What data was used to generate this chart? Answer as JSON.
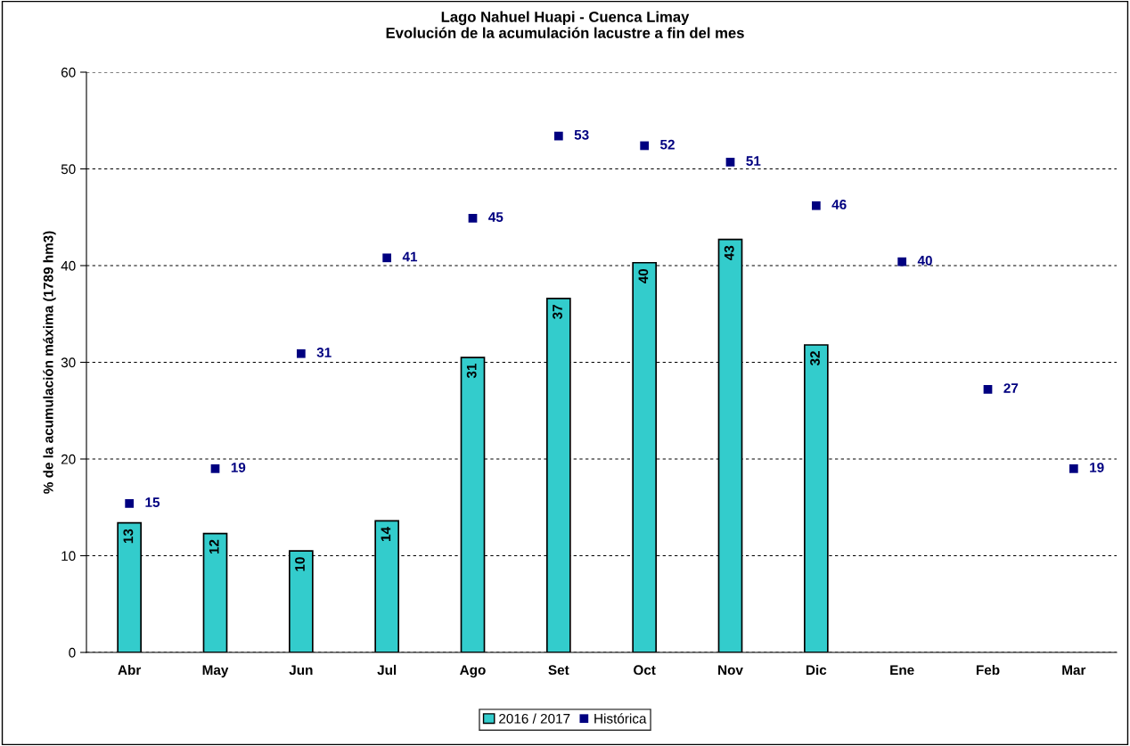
{
  "chart_data": {
    "type": "bar",
    "title": "Lago Nahuel Huapi - Cuenca Limay\nEvolución de la acumulación lacustre a fin del mes",
    "ylabel": "% de la acumulación máxima (1789 hm3)",
    "categories": [
      "Abr",
      "May",
      "Jun",
      "Jul",
      "Ago",
      "Set",
      "Oct",
      "Nov",
      "Dic",
      "Ene",
      "Feb",
      "Mar"
    ],
    "series": [
      {
        "name": "2016 / 2017",
        "color": "#33cccc",
        "values": [
          13.4,
          12.3,
          10.5,
          13.6,
          30.5,
          36.6,
          40.3,
          42.7,
          31.8,
          null,
          null,
          null
        ],
        "value_labels": [
          "13",
          "12",
          "10",
          "14",
          "31",
          "37",
          "40",
          "43",
          "32",
          null,
          null,
          null
        ]
      },
      {
        "name": "Histórica",
        "type": "scatter",
        "marker": "square",
        "color": "#000080",
        "values": [
          15.4,
          19.0,
          30.9,
          40.8,
          44.9,
          53.4,
          52.4,
          50.7,
          46.2,
          40.4,
          27.2,
          19.0
        ],
        "value_labels": [
          "15",
          "19",
          "31",
          "41",
          "45",
          "53",
          "52",
          "51",
          "46",
          "40",
          "27",
          "19"
        ]
      }
    ],
    "ylim": [
      0,
      60
    ],
    "yticks": [
      0,
      10,
      20,
      30,
      40,
      50,
      60
    ],
    "grid": "y",
    "legend": "bottom"
  }
}
